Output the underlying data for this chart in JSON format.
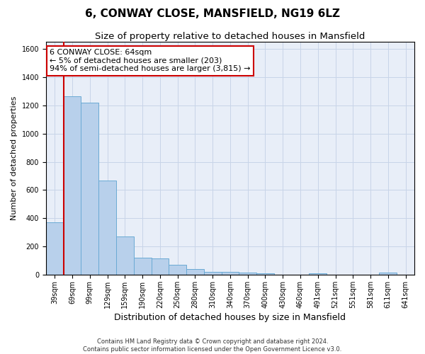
{
  "title": "6, CONWAY CLOSE, MANSFIELD, NG19 6LZ",
  "subtitle": "Size of property relative to detached houses in Mansfield",
  "xlabel": "Distribution of detached houses by size in Mansfield",
  "ylabel": "Number of detached properties",
  "categories": [
    "39sqm",
    "69sqm",
    "99sqm",
    "129sqm",
    "159sqm",
    "190sqm",
    "220sqm",
    "250sqm",
    "280sqm",
    "310sqm",
    "340sqm",
    "370sqm",
    "400sqm",
    "430sqm",
    "460sqm",
    "491sqm",
    "521sqm",
    "551sqm",
    "581sqm",
    "611sqm",
    "641sqm"
  ],
  "values": [
    370,
    1265,
    1220,
    665,
    270,
    120,
    115,
    70,
    40,
    20,
    20,
    15,
    10,
    0,
    0,
    10,
    0,
    0,
    0,
    15,
    0
  ],
  "bar_color": "#b8d0eb",
  "bar_edge_color": "#6aaad4",
  "vline_color": "#cc0000",
  "vline_x": 0.5,
  "annotation_line1": "6 CONWAY CLOSE: 64sqm",
  "annotation_line2": "← 5% of detached houses are smaller (203)",
  "annotation_line3": "94% of semi-detached houses are larger (3,815) →",
  "annotation_box_facecolor": "#ffffff",
  "annotation_box_edgecolor": "#cc0000",
  "ylim": [
    0,
    1650
  ],
  "yticks": [
    0,
    200,
    400,
    600,
    800,
    1000,
    1200,
    1400,
    1600
  ],
  "grid_color": "#c8d4e8",
  "background_color": "#e8eef8",
  "footer_text": "Contains HM Land Registry data © Crown copyright and database right 2024.\nContains public sector information licensed under the Open Government Licence v3.0.",
  "title_fontsize": 11,
  "subtitle_fontsize": 9.5,
  "xlabel_fontsize": 9,
  "ylabel_fontsize": 8,
  "tick_fontsize": 7,
  "footer_fontsize": 6,
  "annotation_fontsize": 8
}
